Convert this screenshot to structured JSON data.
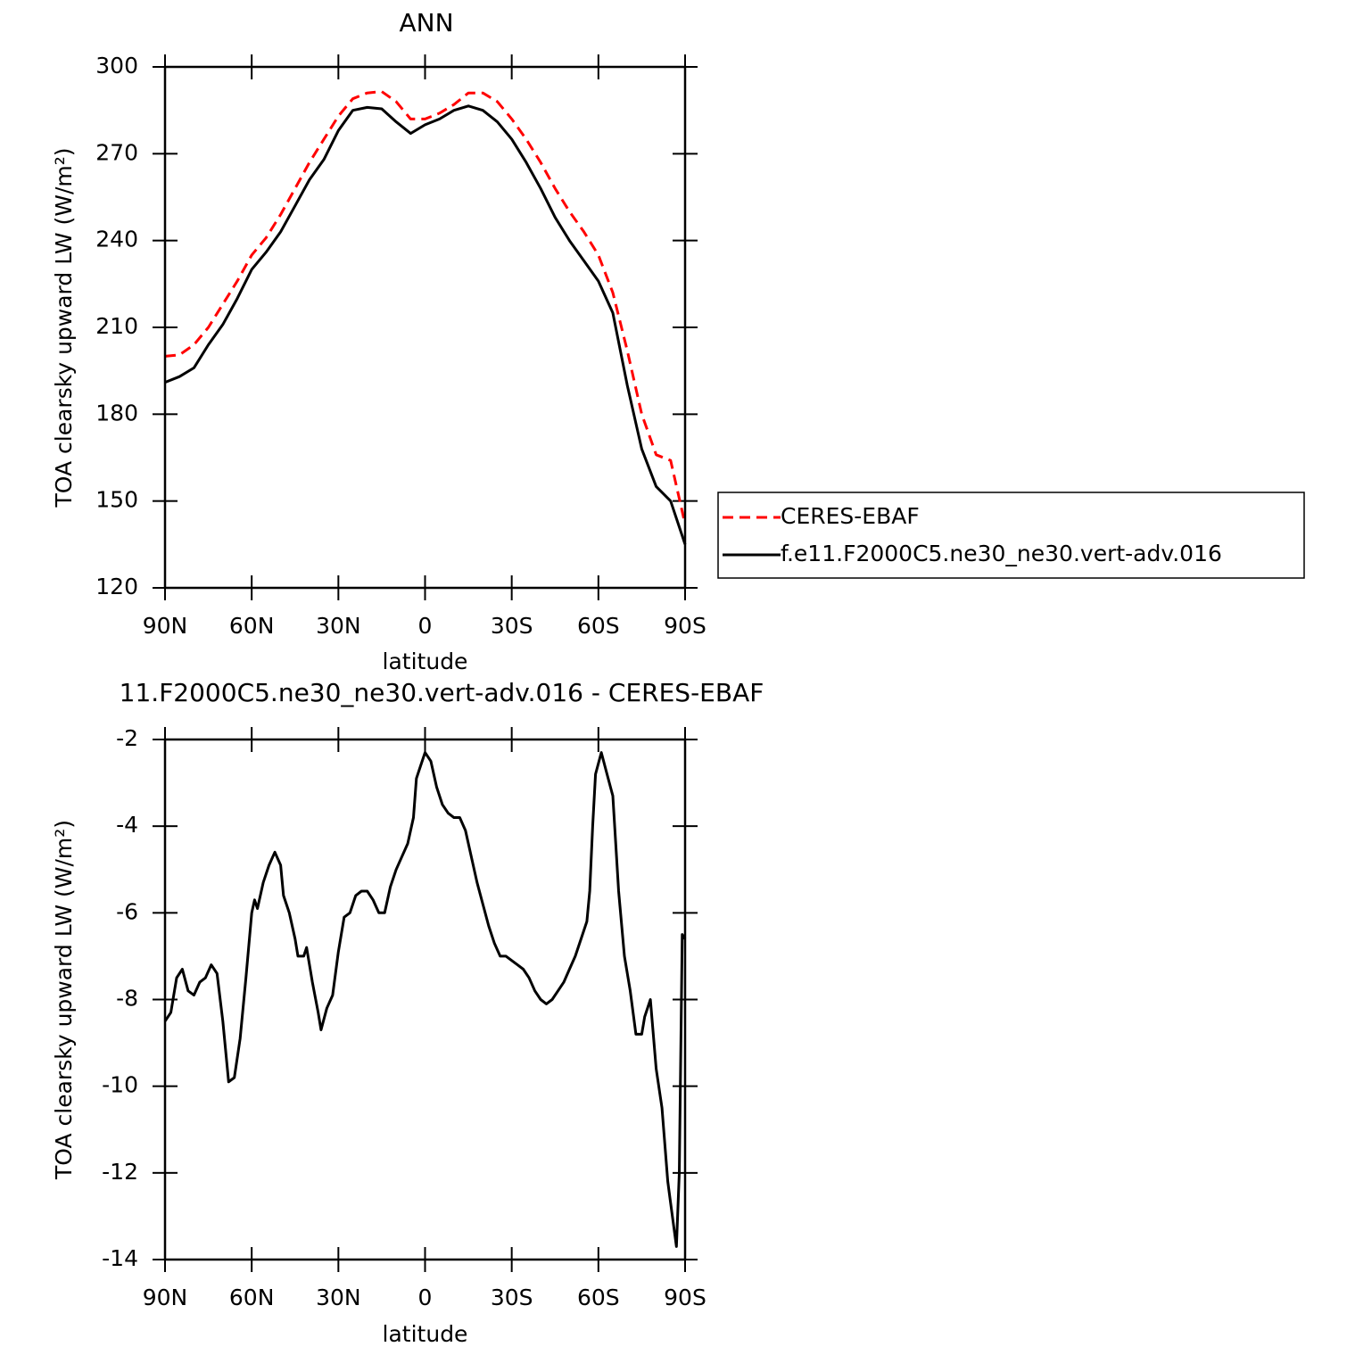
{
  "chart_data": [
    {
      "type": "line",
      "title": "ANN",
      "xlabel": "latitude",
      "ylabel": "TOA clearsky upward LW (W/m²)",
      "x": [
        90,
        85,
        80,
        75,
        70,
        65,
        60,
        55,
        50,
        45,
        40,
        35,
        30,
        25,
        20,
        15,
        10,
        5,
        0,
        -5,
        -10,
        -15,
        -20,
        -25,
        -30,
        -35,
        -40,
        -45,
        -50,
        -55,
        -60,
        -65,
        -70,
        -75,
        -80,
        -85,
        -90
      ],
      "series": [
        {
          "name": "CERES-EBAF",
          "color": "#ff0000",
          "dashed": true,
          "values": [
            200,
            200.5,
            204,
            210,
            218,
            226,
            235,
            241,
            249,
            258,
            267,
            275,
            283,
            289,
            291,
            291.5,
            288,
            282,
            282,
            284,
            287,
            291,
            291,
            288,
            282,
            275,
            267,
            258,
            250,
            243,
            235,
            222,
            202,
            180,
            166,
            164,
            142
          ]
        },
        {
          "name": "f.e11.F2000C5.ne30_ne30.vert-adv.016",
          "color": "#000000",
          "dashed": false,
          "values": [
            191,
            193,
            196,
            204,
            211,
            220,
            230,
            236,
            243,
            252,
            261,
            268,
            278,
            285,
            286,
            285.5,
            281,
            277,
            280,
            282,
            285,
            286.5,
            285,
            281,
            275,
            267,
            258,
            248,
            240,
            233,
            226,
            215,
            190,
            168,
            155,
            150,
            135
          ]
        }
      ],
      "xlim": [
        90,
        -90
      ],
      "xticks": [
        {
          "value": 90,
          "label": "90N"
        },
        {
          "value": 60,
          "label": "60N"
        },
        {
          "value": 30,
          "label": "30N"
        },
        0,
        {
          "value": -30,
          "label": "30S"
        },
        {
          "value": -60,
          "label": "60S"
        },
        {
          "value": -90,
          "label": "90S"
        }
      ],
      "ylim": [
        120,
        300
      ],
      "yticks": [
        120,
        150,
        180,
        210,
        240,
        270,
        300
      ],
      "legend": "right"
    },
    {
      "type": "line",
      "title": "11.F2000C5.ne30_ne30.vert-adv.016 - CERES-EBAF",
      "xlabel": "latitude",
      "ylabel": "TOA clearsky upward LW (W/m²)",
      "x": [
        90,
        88,
        86,
        84,
        82,
        80,
        78,
        76,
        74,
        72,
        70,
        68,
        66,
        64,
        62,
        60,
        59,
        58,
        56,
        54,
        52,
        50,
        49,
        47,
        45,
        44,
        42,
        41,
        39,
        37,
        36,
        34,
        32,
        30,
        28,
        26,
        24,
        22,
        20,
        18,
        16,
        14,
        12,
        10,
        8,
        6,
        4,
        3,
        2,
        0,
        -2,
        -4,
        -6,
        -8,
        -10,
        -12,
        -14,
        -16,
        -18,
        -20,
        -22,
        -24,
        -26,
        -28,
        -30,
        -32,
        -34,
        -36,
        -38,
        -40,
        -42,
        -44,
        -46,
        -48,
        -50,
        -52,
        -54,
        -56,
        -57,
        -58,
        -59,
        -61,
        -63,
        -65,
        -67,
        -69,
        -71,
        -73,
        -75,
        -76,
        -78,
        -80,
        -82,
        -84,
        -85,
        -87,
        -88,
        -89,
        -90
      ],
      "series": [
        {
          "color": "#000000",
          "values": [
            -8.5,
            -8.3,
            -7.5,
            -7.3,
            -7.8,
            -7.9,
            -7.6,
            -7.5,
            -7.2,
            -7.4,
            -8.5,
            -9.9,
            -9.8,
            -8.9,
            -7.5,
            -6.0,
            -5.7,
            -5.9,
            -5.3,
            -4.9,
            -4.6,
            -4.9,
            -5.6,
            -6.0,
            -6.6,
            -7.0,
            -7.0,
            -6.8,
            -7.6,
            -8.3,
            -8.7,
            -8.2,
            -7.9,
            -6.9,
            -6.1,
            -6.0,
            -5.6,
            -5.5,
            -5.5,
            -5.7,
            -6.0,
            -6.0,
            -5.4,
            -5.0,
            -4.7,
            -4.4,
            -3.8,
            -2.9,
            -2.7,
            -2.3,
            -2.5,
            -3.1,
            -3.5,
            -3.7,
            -3.8,
            -3.8,
            -4.1,
            -4.7,
            -5.3,
            -5.8,
            -6.3,
            -6.7,
            -7.0,
            -7.0,
            -7.1,
            -7.2,
            -7.3,
            -7.5,
            -7.8,
            -8.0,
            -8.1,
            -8.0,
            -7.8,
            -7.6,
            -7.3,
            -7.0,
            -6.6,
            -6.2,
            -5.5,
            -4.0,
            -2.8,
            -2.3,
            -2.8,
            -3.3,
            -5.5,
            -7.0,
            -7.8,
            -8.8,
            -8.8,
            -8.4,
            -8.0,
            -9.6,
            -10.5,
            -12.2,
            -12.7,
            -13.7,
            -12.0,
            -6.5,
            -6.6
          ]
        }
      ],
      "xlim": [
        90,
        -90
      ],
      "xticks": [
        {
          "value": 90,
          "label": "90N"
        },
        {
          "value": 60,
          "label": "60N"
        },
        {
          "value": 30,
          "label": "30N"
        },
        0,
        {
          "value": -30,
          "label": "30S"
        },
        {
          "value": -60,
          "label": "60S"
        },
        {
          "value": -90,
          "label": "90S"
        }
      ],
      "ylim": [
        -14,
        -2
      ],
      "yticks": [
        -14,
        -12,
        -10,
        -8,
        -6,
        -4,
        -2
      ]
    }
  ]
}
